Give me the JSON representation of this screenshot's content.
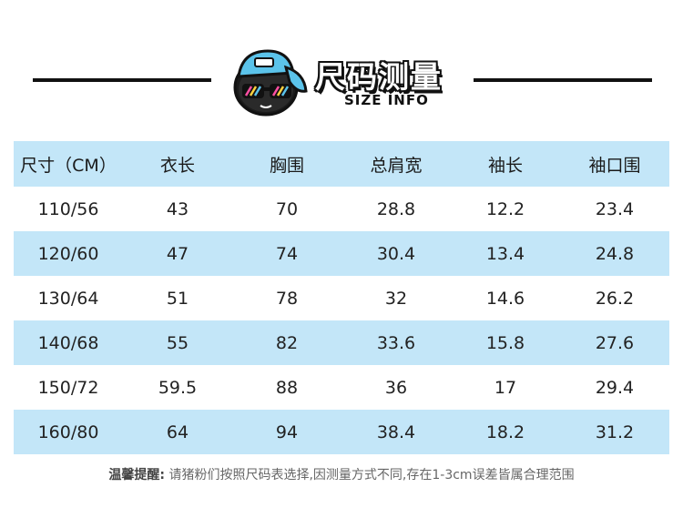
{
  "header": {
    "title_cn": "尺码测量",
    "title_en": "SIZE INFO"
  },
  "table": {
    "columns": [
      "尺寸（CM）",
      "衣长",
      "胸围",
      "总肩宽",
      "袖长",
      "袖口围"
    ],
    "rows": [
      [
        "110/56",
        "43",
        "70",
        "28.8",
        "12.2",
        "23.4"
      ],
      [
        "120/60",
        "47",
        "74",
        "30.4",
        "13.4",
        "24.8"
      ],
      [
        "130/64",
        "51",
        "78",
        "32",
        "14.6",
        "26.2"
      ],
      [
        "140/68",
        "55",
        "82",
        "33.6",
        "15.8",
        "27.6"
      ],
      [
        "150/72",
        "59.5",
        "88",
        "36",
        "17",
        "29.4"
      ],
      [
        "160/80",
        "64",
        "94",
        "38.4",
        "18.2",
        "31.2"
      ]
    ]
  },
  "note": {
    "label": "温馨提醒:",
    "text": "请猪粉们按照尺码表选择,因测量方式不同,存在1-3cm误差皆属合理范围"
  },
  "colors": {
    "row_blue": "#c3e6f8",
    "cap_blue": "#5bc3ea"
  },
  "icons": {
    "mascot": "cap-sunglasses-mascot-icon"
  }
}
